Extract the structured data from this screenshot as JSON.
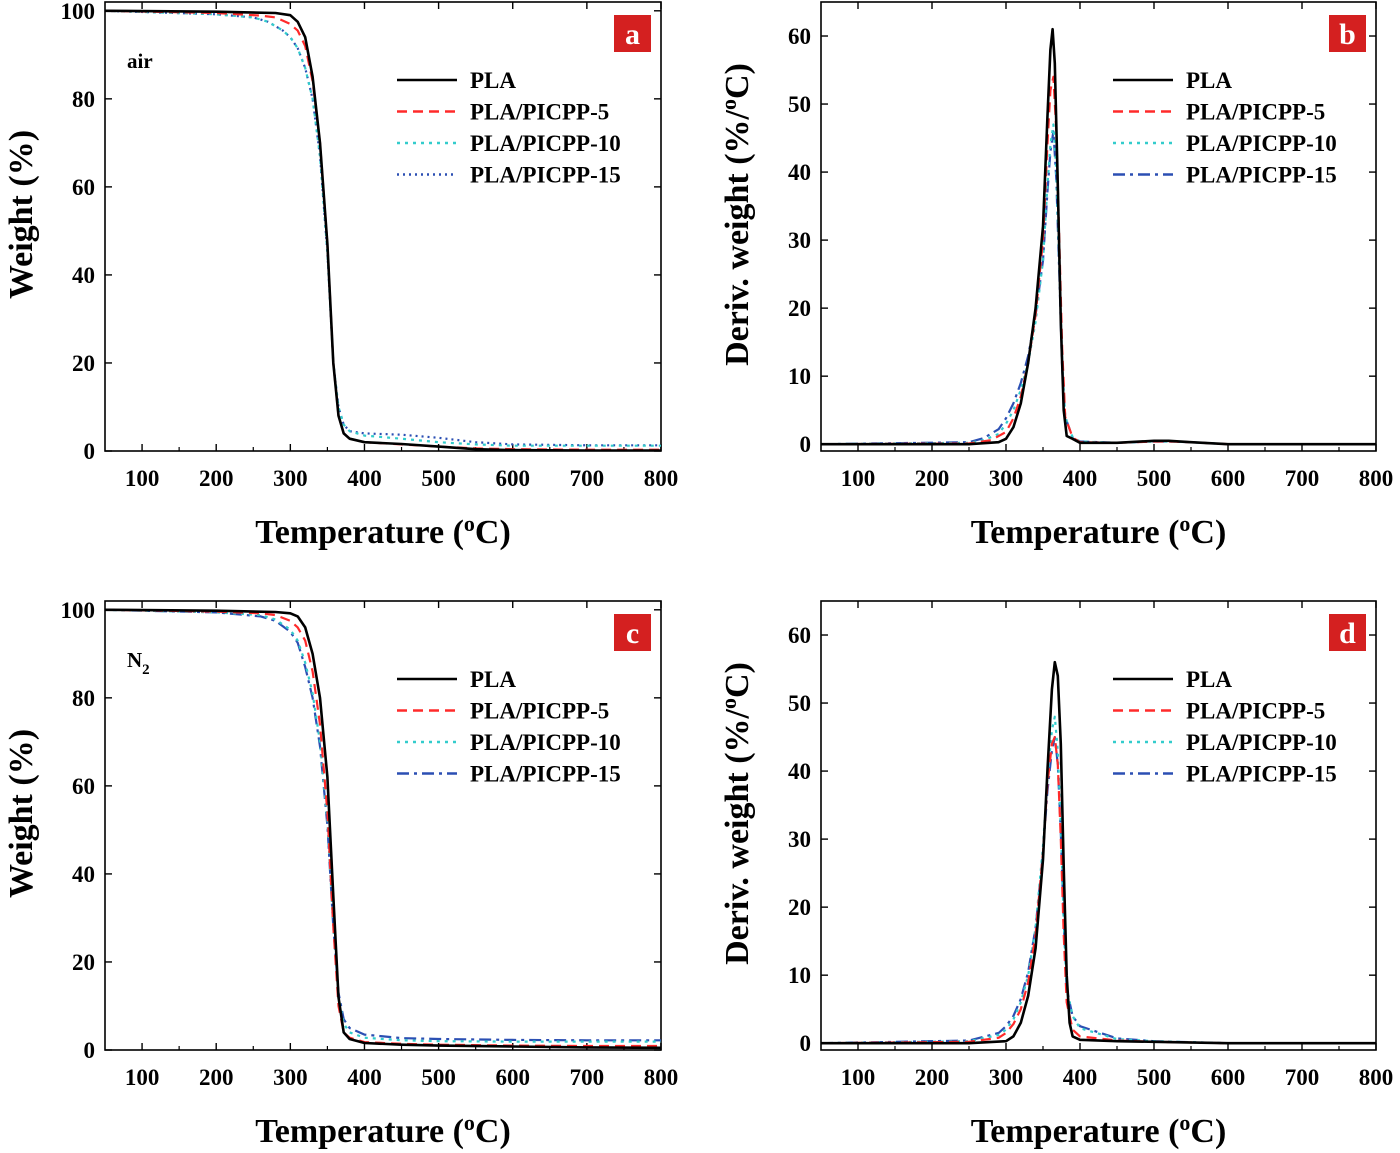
{
  "colors": {
    "PLA": "#000000",
    "PLA/PICPP-5": "#ff2a2a",
    "PLA/PICPP-10": "#33cccc",
    "PLA/PICPP-15": "#2b4fb3",
    "badge": "#d42020"
  },
  "chart_data": [
    {
      "panel": "a",
      "type": "line",
      "title": "",
      "annotation": "air",
      "annotation_sub": "",
      "xlabel": "Temperature (",
      "xlabel_sup": "o",
      "xlabel_tail": "C)",
      "ylabel": "Weight (%)",
      "xlim": [
        50,
        800
      ],
      "ylim": [
        0,
        102
      ],
      "xticks": [
        "100",
        "200",
        "300",
        "400",
        "500",
        "600",
        "700",
        "800"
      ],
      "yticks": [
        "0",
        "20",
        "40",
        "60",
        "80",
        "100"
      ],
      "legend": [
        "PLA",
        "PLA/PICPP-5",
        "PLA/PICPP-10",
        "PLA/PICPP-15"
      ],
      "series": [
        {
          "name": "PLA",
          "dash": "solid",
          "x": [
            50,
            200,
            280,
            300,
            310,
            320,
            330,
            340,
            350,
            358,
            365,
            372,
            380,
            400,
            450,
            500,
            550,
            600,
            700,
            800
          ],
          "y": [
            100,
            99.8,
            99.5,
            99,
            97.5,
            94,
            85,
            70,
            47,
            20,
            8,
            4,
            2.8,
            2,
            1.6,
            1,
            0.4,
            0.2,
            0.1,
            0.1
          ]
        },
        {
          "name": "PLA/PICPP-5",
          "dash": "dashed",
          "x": [
            50,
            200,
            260,
            280,
            300,
            310,
            320,
            330,
            340,
            350,
            358,
            365,
            372,
            380,
            400,
            450,
            500,
            550,
            600,
            700,
            800
          ],
          "y": [
            100,
            99.5,
            98.9,
            98.5,
            97,
            95.5,
            92,
            84,
            70,
            47,
            20,
            8,
            4,
            2.8,
            2,
            1.5,
            1,
            0.6,
            0.4,
            0.3,
            0.3
          ]
        },
        {
          "name": "PLA/PICPP-10",
          "dash": "dotted",
          "x": [
            50,
            200,
            250,
            270,
            290,
            300,
            310,
            320,
            330,
            340,
            350,
            358,
            365,
            372,
            380,
            400,
            450,
            500,
            550,
            600,
            700,
            800
          ],
          "y": [
            100,
            99.2,
            98.5,
            97.5,
            95.5,
            94,
            91.5,
            87,
            80,
            67,
            45,
            20,
            10,
            6,
            4.5,
            3.5,
            2.8,
            2,
            1.5,
            1.2,
            1.2,
            1.2
          ]
        },
        {
          "name": "PLA/PICPP-15",
          "dash": "dotted-fine",
          "x": [
            50,
            200,
            250,
            270,
            290,
            300,
            310,
            320,
            330,
            340,
            350,
            358,
            365,
            372,
            380,
            400,
            450,
            500,
            550,
            600,
            700,
            800
          ],
          "y": [
            100,
            99.2,
            98.5,
            97.5,
            95.5,
            94,
            91.5,
            87,
            80,
            67,
            45,
            20,
            10,
            6,
            4.5,
            4,
            3.7,
            3,
            2,
            1.5,
            1.3,
            1.3
          ]
        }
      ]
    },
    {
      "panel": "b",
      "type": "line",
      "title": "",
      "annotation": "",
      "annotation_sub": "",
      "xlabel": "Temperature (",
      "xlabel_sup": "o",
      "xlabel_tail": "C)",
      "ylabel": "Deriv. weight (%/",
      "ylabel_sup": "o",
      "ylabel_tail": "C)",
      "xlim": [
        50,
        800
      ],
      "ylim": [
        -1,
        65
      ],
      "xticks": [
        "100",
        "200",
        "300",
        "400",
        "500",
        "600",
        "700",
        "800"
      ],
      "yticks": [
        "0",
        "10",
        "20",
        "30",
        "40",
        "50",
        "60"
      ],
      "legend": [
        "PLA",
        "PLA/PICPP-5",
        "PLA/PICPP-10",
        "PLA/PICPP-15"
      ],
      "series": [
        {
          "name": "PLA",
          "dash": "solid",
          "x": [
            50,
            250,
            290,
            300,
            310,
            320,
            330,
            340,
            350,
            356,
            360,
            363,
            366,
            370,
            374,
            378,
            382,
            390,
            400,
            450,
            500,
            520,
            550,
            600,
            700,
            800
          ],
          "y": [
            0,
            0,
            0.3,
            0.8,
            2.5,
            6,
            12,
            20,
            32,
            48,
            58,
            61,
            56,
            38,
            18,
            5,
            1.2,
            0.8,
            0.2,
            0.2,
            0.5,
            0.5,
            0.3,
            0,
            0,
            0
          ]
        },
        {
          "name": "PLA/PICPP-5",
          "dash": "dashed",
          "x": [
            50,
            250,
            280,
            300,
            310,
            320,
            330,
            340,
            350,
            356,
            360,
            364,
            368,
            372,
            376,
            380,
            390,
            400,
            450,
            500,
            520,
            550,
            600,
            700,
            800
          ],
          "y": [
            0,
            0.1,
            0.6,
            1.8,
            3.8,
            7,
            12,
            19,
            30,
            44,
            52,
            54,
            46,
            30,
            14,
            4,
            1,
            0.3,
            0.2,
            0.4,
            0.4,
            0.3,
            0,
            0,
            0
          ]
        },
        {
          "name": "PLA/PICPP-10",
          "dash": "dotted",
          "x": [
            50,
            250,
            270,
            290,
            300,
            310,
            320,
            330,
            340,
            350,
            356,
            360,
            364,
            368,
            372,
            376,
            380,
            390,
            400,
            450,
            500,
            520,
            550,
            600,
            700,
            800
          ],
          "y": [
            0,
            0.2,
            0.6,
            1.5,
            3,
            5,
            8,
            12,
            18,
            27,
            38,
            44,
            47,
            40,
            26,
            12,
            4,
            1,
            0.4,
            0.2,
            0.4,
            0.4,
            0.3,
            0,
            0,
            0
          ]
        },
        {
          "name": "PLA/PICPP-15",
          "dash": "dashdot",
          "x": [
            50,
            250,
            270,
            290,
            300,
            310,
            320,
            330,
            340,
            350,
            356,
            360,
            364,
            368,
            372,
            376,
            380,
            390,
            400,
            450,
            500,
            520,
            550,
            600,
            700,
            800
          ],
          "y": [
            0,
            0.3,
            0.9,
            2.2,
            3.8,
            6,
            9,
            13,
            19,
            27,
            37,
            43,
            46,
            39,
            25,
            11,
            4,
            1,
            0.4,
            0.2,
            0.4,
            0.4,
            0.3,
            0,
            0,
            0
          ]
        }
      ]
    },
    {
      "panel": "c",
      "type": "line",
      "title": "",
      "annotation": "N",
      "annotation_sub": "2",
      "xlabel": "Temperature (",
      "xlabel_sup": "o",
      "xlabel_tail": "C)",
      "ylabel": "Weight (%)",
      "xlim": [
        50,
        800
      ],
      "ylim": [
        0,
        102
      ],
      "xticks": [
        "100",
        "200",
        "300",
        "400",
        "500",
        "600",
        "700",
        "800"
      ],
      "yticks": [
        "0",
        "20",
        "40",
        "60",
        "80",
        "100"
      ],
      "legend": [
        "PLA",
        "PLA/PICPP-5",
        "PLA/PICPP-10",
        "PLA/PICPP-15"
      ],
      "series": [
        {
          "name": "PLA",
          "dash": "solid",
          "x": [
            50,
            200,
            280,
            300,
            310,
            320,
            330,
            340,
            350,
            358,
            365,
            372,
            380,
            400,
            450,
            500,
            600,
            700,
            800
          ],
          "y": [
            100,
            99.8,
            99.5,
            99.2,
            98.5,
            96,
            90,
            80,
            62,
            35,
            12,
            4,
            2.5,
            1.6,
            1.2,
            1,
            0.8,
            0.6,
            0.5
          ]
        },
        {
          "name": "PLA/PICPP-5",
          "dash": "dashed",
          "x": [
            50,
            200,
            260,
            280,
            300,
            310,
            320,
            330,
            340,
            350,
            358,
            365,
            372,
            380,
            400,
            450,
            500,
            600,
            700,
            800
          ],
          "y": [
            100,
            99.6,
            99.2,
            98.8,
            97.5,
            96,
            93,
            86,
            74,
            54,
            28,
            10,
            4,
            2.8,
            1.8,
            1.4,
            1.2,
            1,
            0.9,
            0.9
          ]
        },
        {
          "name": "PLA/PICPP-10",
          "dash": "dotted",
          "x": [
            50,
            200,
            260,
            280,
            300,
            310,
            320,
            330,
            340,
            350,
            358,
            365,
            372,
            380,
            400,
            450,
            500,
            600,
            700,
            800
          ],
          "y": [
            100,
            99.4,
            98.8,
            97.8,
            95.5,
            93,
            88,
            81,
            70,
            52,
            28,
            12,
            6,
            4,
            2.8,
            2.2,
            2,
            1.9,
            1.9,
            1.9
          ]
        },
        {
          "name": "PLA/PICPP-15",
          "dash": "dashdot",
          "x": [
            50,
            200,
            260,
            280,
            300,
            310,
            320,
            330,
            340,
            350,
            358,
            365,
            372,
            380,
            400,
            450,
            500,
            600,
            700,
            800
          ],
          "y": [
            100,
            99.4,
            98.5,
            97.5,
            95,
            92.5,
            87,
            80,
            69,
            51,
            28,
            13,
            7,
            5,
            3.5,
            2.7,
            2.5,
            2.3,
            2.2,
            2.2
          ]
        }
      ]
    },
    {
      "panel": "d",
      "type": "line",
      "title": "",
      "annotation": "",
      "annotation_sub": "",
      "xlabel": "Temperature (",
      "xlabel_sup": "o",
      "xlabel_tail": "C)",
      "ylabel": "Deriv. weight (%/",
      "ylabel_sup": "o",
      "ylabel_tail": "C)",
      "xlim": [
        50,
        800
      ],
      "ylim": [
        -1,
        65
      ],
      "xticks": [
        "100",
        "200",
        "300",
        "400",
        "500",
        "600",
        "700",
        "800"
      ],
      "yticks": [
        "0",
        "10",
        "20",
        "30",
        "40",
        "50",
        "60"
      ],
      "legend": [
        "PLA",
        "PLA/PICPP-5",
        "PLA/PICPP-10",
        "PLA/PICPP-15"
      ],
      "series": [
        {
          "name": "PLA",
          "dash": "solid",
          "x": [
            50,
            250,
            300,
            310,
            320,
            330,
            340,
            350,
            356,
            362,
            366,
            370,
            374,
            378,
            382,
            386,
            390,
            400,
            450,
            500,
            600,
            700,
            800
          ],
          "y": [
            0,
            0,
            0.3,
            1,
            3,
            7,
            14,
            27,
            40,
            52,
            56,
            54,
            44,
            26,
            10,
            3,
            1,
            0.5,
            0.3,
            0.2,
            0,
            0,
            0
          ]
        },
        {
          "name": "PLA/PICPP-5",
          "dash": "dashed",
          "x": [
            50,
            250,
            290,
            300,
            310,
            320,
            330,
            340,
            350,
            356,
            362,
            366,
            370,
            374,
            378,
            382,
            390,
            400,
            450,
            500,
            600,
            700,
            800
          ],
          "y": [
            0,
            0.2,
            0.8,
            1.5,
            2.8,
            5,
            9,
            16,
            28,
            38,
            44,
            45,
            41,
            30,
            16,
            6,
            2,
            1,
            0.4,
            0.2,
            0,
            0,
            0
          ]
        },
        {
          "name": "PLA/PICPP-10",
          "dash": "dotted",
          "x": [
            50,
            250,
            290,
            300,
            310,
            320,
            330,
            340,
            350,
            356,
            362,
            366,
            370,
            374,
            378,
            382,
            390,
            400,
            450,
            500,
            600,
            700,
            800
          ],
          "y": [
            0,
            0.3,
            1.2,
            2,
            3.5,
            6,
            10,
            17,
            29,
            39,
            46,
            48,
            43,
            32,
            18,
            8,
            4,
            2.2,
            0.6,
            0.3,
            0,
            0,
            0
          ]
        },
        {
          "name": "PLA/PICPP-15",
          "dash": "dashdot",
          "x": [
            50,
            250,
            290,
            300,
            310,
            320,
            330,
            340,
            350,
            356,
            362,
            366,
            370,
            374,
            378,
            382,
            390,
            400,
            450,
            500,
            600,
            700,
            800
          ],
          "y": [
            0,
            0.4,
            1.5,
            2.5,
            4,
            6.5,
            10.5,
            17,
            28,
            37,
            43,
            45,
            41,
            31,
            18,
            8,
            4,
            2.5,
            0.7,
            0.3,
            0,
            0,
            0
          ]
        }
      ]
    }
  ]
}
